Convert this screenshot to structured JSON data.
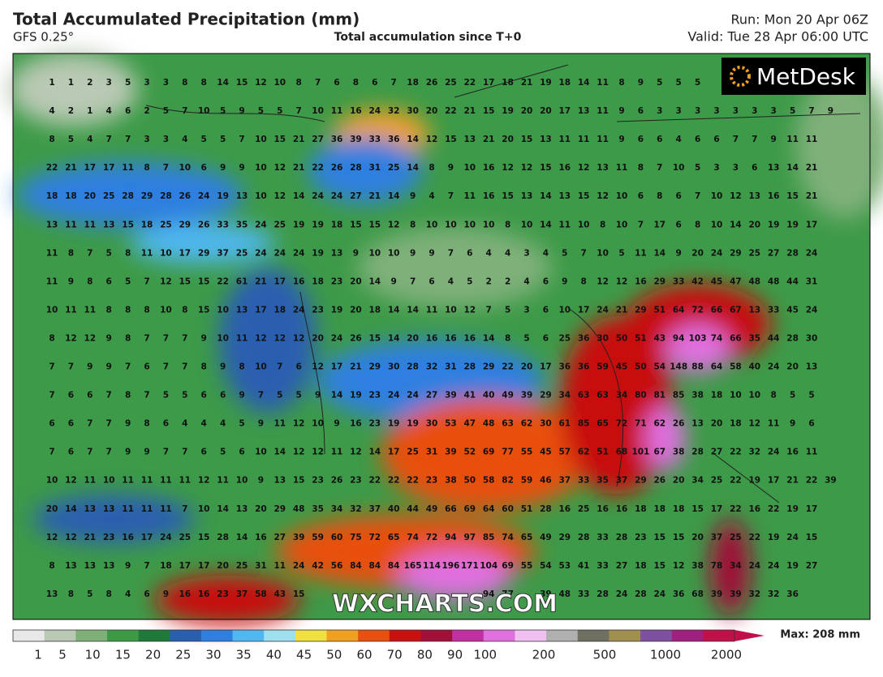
{
  "header": {
    "title": "Total Accumulated Precipitation (mm)",
    "model": "GFS 0.25°",
    "subtitle": "Total accumulation since T+0",
    "run": "Run: Mon 20 Apr 06Z",
    "valid": "Valid: Tue 28 Apr 06:00 UTC"
  },
  "logo": "MetDesk",
  "watermark": "WXCHARTS.COM",
  "grid": {
    "rows": [
      [
        1,
        1,
        2,
        3,
        5,
        3,
        3,
        8,
        8,
        14,
        15,
        12,
        10,
        8,
        7,
        6,
        8,
        6,
        7,
        18,
        26,
        25,
        22,
        17,
        18,
        21,
        19,
        18,
        14,
        11,
        8,
        9,
        5,
        5,
        5
      ],
      [
        4,
        2,
        1,
        4,
        6,
        2,
        5,
        7,
        10,
        5,
        9,
        5,
        5,
        7,
        10,
        11,
        16,
        24,
        32,
        30,
        20,
        22,
        21,
        15,
        19,
        20,
        20,
        17,
        13,
        11,
        9,
        6,
        3,
        3,
        3,
        3,
        3,
        3,
        3,
        5,
        7,
        9
      ],
      [
        8,
        5,
        4,
        7,
        7,
        3,
        3,
        4,
        5,
        5,
        7,
        10,
        15,
        21,
        27,
        36,
        39,
        33,
        36,
        14,
        12,
        15,
        13,
        21,
        20,
        15,
        13,
        11,
        11,
        11,
        9,
        6,
        6,
        4,
        6,
        6,
        7,
        7,
        9,
        11,
        11
      ],
      [
        22,
        21,
        17,
        17,
        11,
        8,
        7,
        10,
        6,
        9,
        9,
        10,
        12,
        21,
        22,
        26,
        28,
        31,
        25,
        14,
        8,
        9,
        10,
        16,
        12,
        12,
        15,
        16,
        12,
        13,
        11,
        8,
        7,
        10,
        5,
        3,
        3,
        6,
        13,
        14,
        21
      ],
      [
        18,
        18,
        20,
        25,
        28,
        29,
        28,
        26,
        24,
        19,
        13,
        10,
        12,
        14,
        24,
        24,
        27,
        21,
        14,
        9,
        4,
        7,
        11,
        16,
        15,
        13,
        14,
        13,
        15,
        12,
        10,
        6,
        8,
        6,
        7,
        10,
        12,
        13,
        16,
        15,
        21
      ],
      [
        13,
        11,
        11,
        13,
        15,
        18,
        25,
        29,
        26,
        33,
        35,
        24,
        25,
        19,
        19,
        18,
        15,
        15,
        12,
        8,
        10,
        10,
        10,
        10,
        8,
        10,
        14,
        11,
        10,
        8,
        10,
        7,
        17,
        6,
        8,
        10,
        14,
        20,
        19,
        19,
        17
      ],
      [
        11,
        8,
        7,
        5,
        8,
        11,
        10,
        17,
        29,
        37,
        25,
        24,
        24,
        24,
        19,
        13,
        9,
        10,
        10,
        9,
        9,
        7,
        6,
        4,
        4,
        3,
        4,
        5,
        7,
        10,
        5,
        11,
        14,
        9,
        20,
        24,
        29,
        25,
        27,
        28,
        24
      ],
      [
        11,
        9,
        8,
        6,
        5,
        7,
        12,
        15,
        15,
        22,
        61,
        21,
        17,
        16,
        18,
        23,
        20,
        14,
        9,
        7,
        6,
        4,
        5,
        2,
        2,
        4,
        6,
        9,
        8,
        12,
        12,
        16,
        29,
        33,
        42,
        45,
        47,
        48,
        48,
        44,
        31
      ],
      [
        10,
        11,
        11,
        8,
        8,
        8,
        10,
        8,
        15,
        10,
        13,
        17,
        18,
        24,
        23,
        19,
        20,
        18,
        14,
        14,
        11,
        10,
        12,
        7,
        5,
        3,
        6,
        10,
        17,
        24,
        21,
        29,
        51,
        64,
        72,
        66,
        67,
        13,
        33,
        45,
        24
      ],
      [
        8,
        12,
        12,
        9,
        8,
        7,
        7,
        7,
        9,
        10,
        11,
        12,
        12,
        12,
        20,
        24,
        26,
        15,
        14,
        20,
        16,
        16,
        16,
        14,
        8,
        5,
        6,
        25,
        36,
        30,
        50,
        51,
        43,
        94,
        103,
        74,
        66,
        35,
        44,
        28,
        30
      ],
      [
        7,
        7,
        9,
        9,
        7,
        6,
        7,
        7,
        8,
        9,
        8,
        10,
        7,
        6,
        12,
        17,
        21,
        29,
        30,
        28,
        32,
        31,
        28,
        29,
        22,
        20,
        17,
        36,
        36,
        59,
        45,
        50,
        54,
        148,
        88,
        64,
        58,
        40,
        24,
        20,
        13
      ],
      [
        7,
        6,
        6,
        7,
        8,
        7,
        5,
        5,
        6,
        6,
        9,
        7,
        5,
        5,
        9,
        14,
        19,
        23,
        24,
        24,
        27,
        39,
        41,
        40,
        49,
        39,
        29,
        34,
        63,
        63,
        34,
        80,
        81,
        85,
        38,
        18,
        10,
        10,
        8,
        5,
        5
      ],
      [
        6,
        6,
        7,
        7,
        9,
        8,
        6,
        4,
        4,
        4,
        5,
        9,
        11,
        12,
        10,
        9,
        16,
        23,
        19,
        19,
        30,
        53,
        47,
        48,
        63,
        62,
        30,
        61,
        85,
        65,
        72,
        71,
        62,
        26,
        13,
        20,
        18,
        12,
        11,
        9,
        6
      ],
      [
        7,
        6,
        7,
        7,
        9,
        9,
        7,
        7,
        6,
        5,
        6,
        10,
        14,
        12,
        12,
        11,
        12,
        14,
        17,
        25,
        31,
        39,
        52,
        69,
        77,
        55,
        45,
        57,
        62,
        51,
        68,
        101,
        67,
        38,
        28,
        27,
        22,
        32,
        24,
        16,
        11
      ],
      [
        10,
        12,
        11,
        10,
        11,
        11,
        11,
        11,
        12,
        11,
        10,
        9,
        13,
        15,
        23,
        26,
        23,
        22,
        22,
        22,
        23,
        38,
        50,
        58,
        82,
        59,
        46,
        37,
        33,
        35,
        37,
        29,
        26,
        20,
        34,
        25,
        22,
        19,
        17,
        21,
        22,
        39
      ],
      [
        20,
        14,
        13,
        13,
        11,
        11,
        11,
        7,
        10,
        14,
        13,
        20,
        29,
        48,
        35,
        34,
        32,
        37,
        40,
        44,
        49,
        66,
        69,
        64,
        60,
        51,
        28,
        16,
        25,
        16,
        16,
        18,
        18,
        18,
        15,
        17,
        22,
        16,
        22,
        19,
        17
      ],
      [
        12,
        12,
        21,
        23,
        16,
        17,
        24,
        25,
        15,
        28,
        14,
        16,
        27,
        39,
        59,
        60,
        75,
        72,
        65,
        74,
        72,
        94,
        97,
        85,
        74,
        65,
        49,
        29,
        28,
        33,
        28,
        23,
        15,
        15,
        20,
        37,
        25,
        22,
        19,
        24,
        15
      ],
      [
        8,
        13,
        13,
        13,
        9,
        7,
        18,
        17,
        17,
        20,
        25,
        31,
        11,
        24,
        42,
        56,
        84,
        84,
        84,
        165,
        114,
        196,
        171,
        104,
        69,
        55,
        54,
        53,
        41,
        33,
        27,
        18,
        15,
        12,
        38,
        78,
        34,
        24,
        24,
        19,
        27
      ],
      [
        13,
        8,
        5,
        8,
        4,
        6,
        9,
        16,
        16,
        23,
        37,
        58,
        43,
        15,
        null,
        null,
        null,
        null,
        null,
        null,
        null,
        null,
        null,
        94,
        77,
        null,
        39,
        48,
        33,
        28,
        24,
        28,
        24,
        36,
        68,
        39,
        39,
        32,
        32,
        36
      ]
    ]
  },
  "legend": {
    "ticks": [
      1,
      5,
      10,
      15,
      20,
      25,
      30,
      35,
      40,
      45,
      50,
      60,
      70,
      80,
      90,
      100,
      200,
      500,
      1000,
      2000
    ],
    "colors": [
      "#e8e8e8",
      "#b9c9b4",
      "#7fb07a",
      "#3f9a45",
      "#1f7a3a",
      "#2a5fb0",
      "#2e7fe0",
      "#4fb8f0",
      "#9ee0f0",
      "#f0e040",
      "#f0a020",
      "#e85010",
      "#c81010",
      "#a01038",
      "#c030a0",
      "#e070e0",
      "#f0c0f0",
      "#b0b0b0",
      "#707060",
      "#a09050",
      "#8050a0",
      "#a02080",
      "#c0104a"
    ],
    "max": "Max: 208 mm"
  }
}
